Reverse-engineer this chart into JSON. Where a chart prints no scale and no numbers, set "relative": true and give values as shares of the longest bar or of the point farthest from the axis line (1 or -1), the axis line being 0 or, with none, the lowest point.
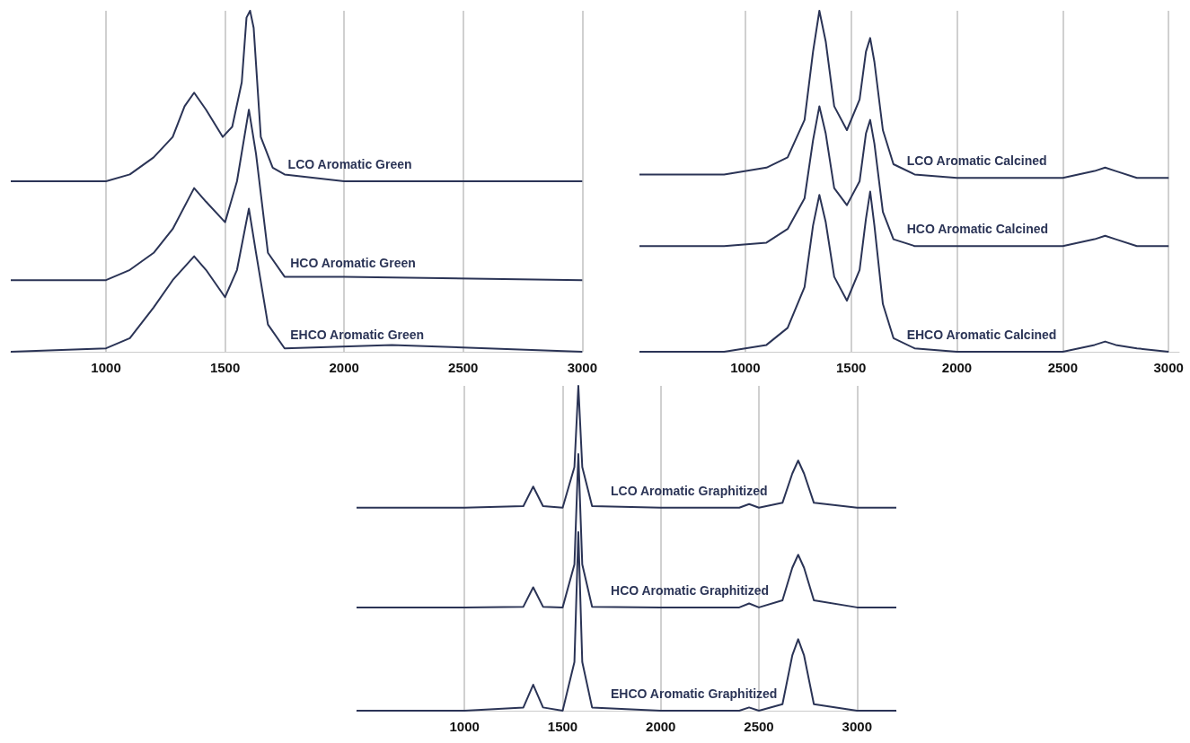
{
  "chart_data": [
    {
      "type": "line",
      "relative": true,
      "xlim": [
        600,
        3000
      ],
      "xticks": [
        1000,
        1500,
        2000,
        2500,
        3000
      ],
      "grid": "x",
      "legend": false,
      "marker": "none",
      "line_style": "solid",
      "series": [
        {
          "name": "LCO Aromatic Green",
          "color": "#2b3456",
          "x": [
            600,
            1000,
            1100,
            1200,
            1280,
            1330,
            1370,
            1420,
            1490,
            1530,
            1570,
            1590,
            1605,
            1620,
            1650,
            1700,
            1750,
            2000,
            2500,
            3000
          ],
          "values": [
            0.5,
            0.5,
            0.52,
            0.57,
            0.63,
            0.72,
            0.76,
            0.71,
            0.63,
            0.66,
            0.79,
            0.98,
            1,
            0.95,
            0.63,
            0.54,
            0.52,
            0.5,
            0.5,
            0.5
          ]
        },
        {
          "name": "HCO Aromatic Green",
          "color": "#2b3456",
          "x": [
            600,
            1000,
            1100,
            1200,
            1280,
            1370,
            1420,
            1500,
            1550,
            1600,
            1630,
            1680,
            1750,
            2000,
            3000
          ],
          "values": [
            0.21,
            0.21,
            0.24,
            0.29,
            0.36,
            0.48,
            0.44,
            0.38,
            0.5,
            0.71,
            0.58,
            0.29,
            0.22,
            0.22,
            0.21
          ]
        },
        {
          "name": "EHCO Aromatic Green",
          "color": "#2b3456",
          "x": [
            600,
            1000,
            1100,
            1200,
            1280,
            1370,
            1420,
            1500,
            1550,
            1600,
            1630,
            1680,
            1750,
            2200,
            3000
          ],
          "values": [
            0,
            0.01,
            0.04,
            0.13,
            0.21,
            0.28,
            0.24,
            0.16,
            0.24,
            0.42,
            0.29,
            0.08,
            0.01,
            0.02,
            0
          ]
        }
      ]
    },
    {
      "type": "line",
      "relative": true,
      "xlim": [
        500,
        3050
      ],
      "xticks": [
        1000,
        1500,
        2000,
        2500,
        3000
      ],
      "grid": "x",
      "legend": false,
      "marker": "none",
      "line_style": "solid",
      "series": [
        {
          "name": "LCO Aromatic Calcined",
          "color": "#2b3456",
          "x": [
            500,
            900,
            1100,
            1200,
            1280,
            1320,
            1350,
            1380,
            1420,
            1480,
            1540,
            1570,
            1590,
            1610,
            1650,
            1700,
            1800,
            2000,
            2500,
            2650,
            2700,
            2750,
            2850,
            3000
          ],
          "values": [
            0.52,
            0.52,
            0.54,
            0.57,
            0.68,
            0.88,
            1.0,
            0.91,
            0.72,
            0.65,
            0.74,
            0.88,
            0.92,
            0.85,
            0.65,
            0.55,
            0.52,
            0.51,
            0.51,
            0.53,
            0.54,
            0.53,
            0.51,
            0.51
          ]
        },
        {
          "name": "HCO Aromatic Calcined",
          "color": "#2b3456",
          "x": [
            500,
            900,
            1100,
            1200,
            1280,
            1320,
            1350,
            1380,
            1420,
            1480,
            1540,
            1570,
            1590,
            1610,
            1650,
            1700,
            1800,
            2000,
            2500,
            2650,
            2700,
            2750,
            2850,
            3000
          ],
          "values": [
            0.31,
            0.31,
            0.32,
            0.36,
            0.45,
            0.62,
            0.72,
            0.64,
            0.48,
            0.43,
            0.5,
            0.64,
            0.68,
            0.61,
            0.41,
            0.33,
            0.31,
            0.31,
            0.31,
            0.33,
            0.34,
            0.33,
            0.31,
            0.31
          ]
        },
        {
          "name": "EHCO Aromatic Calcined",
          "color": "#2b3456",
          "x": [
            500,
            900,
            1100,
            1200,
            1280,
            1320,
            1350,
            1380,
            1420,
            1480,
            1540,
            1570,
            1590,
            1610,
            1650,
            1700,
            1800,
            2000,
            2500,
            2650,
            2700,
            2750,
            2850,
            3000
          ],
          "values": [
            0,
            0,
            0.02,
            0.07,
            0.19,
            0.37,
            0.46,
            0.38,
            0.22,
            0.15,
            0.24,
            0.39,
            0.47,
            0.37,
            0.14,
            0.04,
            0.01,
            0,
            0,
            0.02,
            0.03,
            0.02,
            0.01,
            0
          ]
        }
      ]
    },
    {
      "type": "line",
      "relative": true,
      "xlim": [
        450,
        3200
      ],
      "xticks": [
        1000,
        1500,
        2000,
        2500,
        3000
      ],
      "grid": "x",
      "legend": false,
      "marker": "none",
      "line_style": "solid",
      "series": [
        {
          "name": "LCO Aromatic Graphitized",
          "color": "#2b3456",
          "x": [
            450,
            1000,
            1300,
            1350,
            1400,
            1500,
            1560,
            1580,
            1600,
            1650,
            2000,
            2400,
            2450,
            2500,
            2620,
            2670,
            2700,
            2730,
            2780,
            3000,
            3200
          ],
          "values": [
            0.625,
            0.625,
            0.63,
            0.69,
            0.63,
            0.625,
            0.75,
            1.0,
            0.75,
            0.63,
            0.625,
            0.625,
            0.636,
            0.625,
            0.64,
            0.73,
            0.77,
            0.73,
            0.64,
            0.625,
            0.625
          ]
        },
        {
          "name": "HCO Aromatic Graphitized",
          "color": "#2b3456",
          "x": [
            450,
            1000,
            1300,
            1350,
            1400,
            1500,
            1560,
            1580,
            1600,
            1650,
            2000,
            2400,
            2450,
            2500,
            2620,
            2670,
            2700,
            2730,
            2780,
            3000,
            3200
          ],
          "values": [
            0.318,
            0.318,
            0.32,
            0.38,
            0.32,
            0.318,
            0.45,
            0.79,
            0.45,
            0.32,
            0.318,
            0.318,
            0.33,
            0.318,
            0.34,
            0.44,
            0.48,
            0.44,
            0.34,
            0.318,
            0.318
          ]
        },
        {
          "name": "EHCO Aromatic Graphitized",
          "color": "#2b3456",
          "x": [
            450,
            1000,
            1300,
            1350,
            1400,
            1500,
            1560,
            1580,
            1600,
            1650,
            2000,
            2400,
            2450,
            2500,
            2620,
            2670,
            2700,
            2730,
            2780,
            3000,
            3200
          ],
          "values": [
            0,
            0,
            0.01,
            0.08,
            0.01,
            0,
            0.15,
            0.55,
            0.15,
            0.01,
            0,
            0,
            0.01,
            0,
            0.02,
            0.17,
            0.22,
            0.17,
            0.02,
            0,
            0
          ]
        }
      ]
    }
  ]
}
